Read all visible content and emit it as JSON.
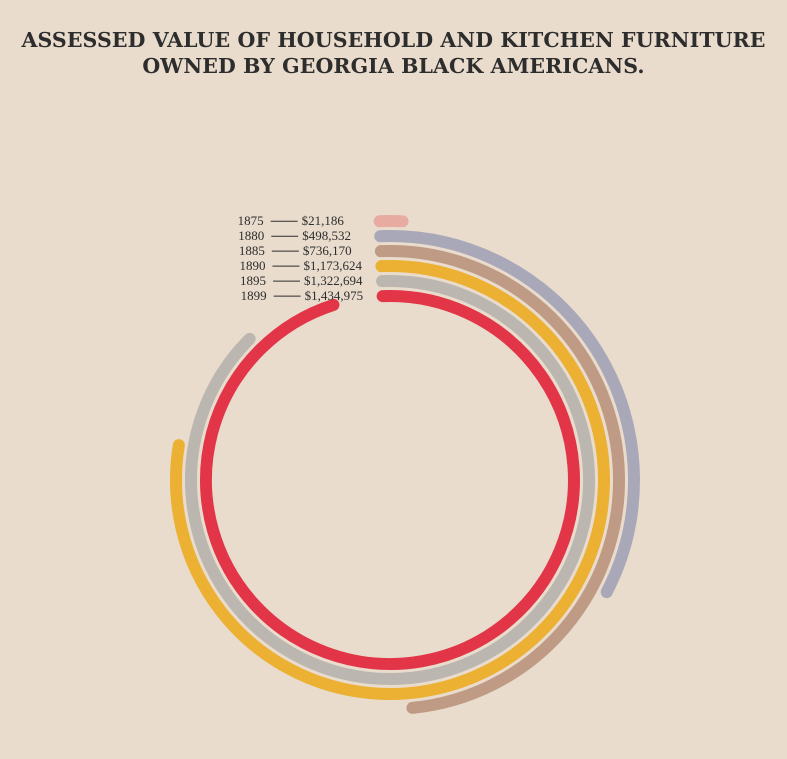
{
  "title_lines": [
    "ASSESSED VALUE OF HOUSEHOLD AND KITCHEN FURNITURE",
    "OWNED BY GEORGIA BLACK AMERICANS."
  ],
  "chart_data": {
    "type": "spiral bar",
    "title": "ASSESSED VALUE OF HOUSEHOLD AND KITCHEN FURNITURE OWNED BY GEORGIA BLACK AMERICANS.",
    "series": [
      {
        "year": "1875",
        "value": 21186,
        "label": "$21,186",
        "color": "#e8aba2"
      },
      {
        "year": "1880",
        "value": 498532,
        "label": "$498,532",
        "color": "#a9a8b8"
      },
      {
        "year": "1885",
        "value": 736170,
        "label": "$736,170",
        "color": "#bf9b85"
      },
      {
        "year": "1890",
        "value": 1173624,
        "label": "$1,173,624",
        "color": "#ecb033"
      },
      {
        "year": "1895",
        "value": 1322694,
        "label": "$1,322,694",
        "color": "#bbb7b0"
      },
      {
        "year": "1899",
        "value": 1434975,
        "label": "$1,434,975",
        "color": "#e23548"
      }
    ]
  }
}
